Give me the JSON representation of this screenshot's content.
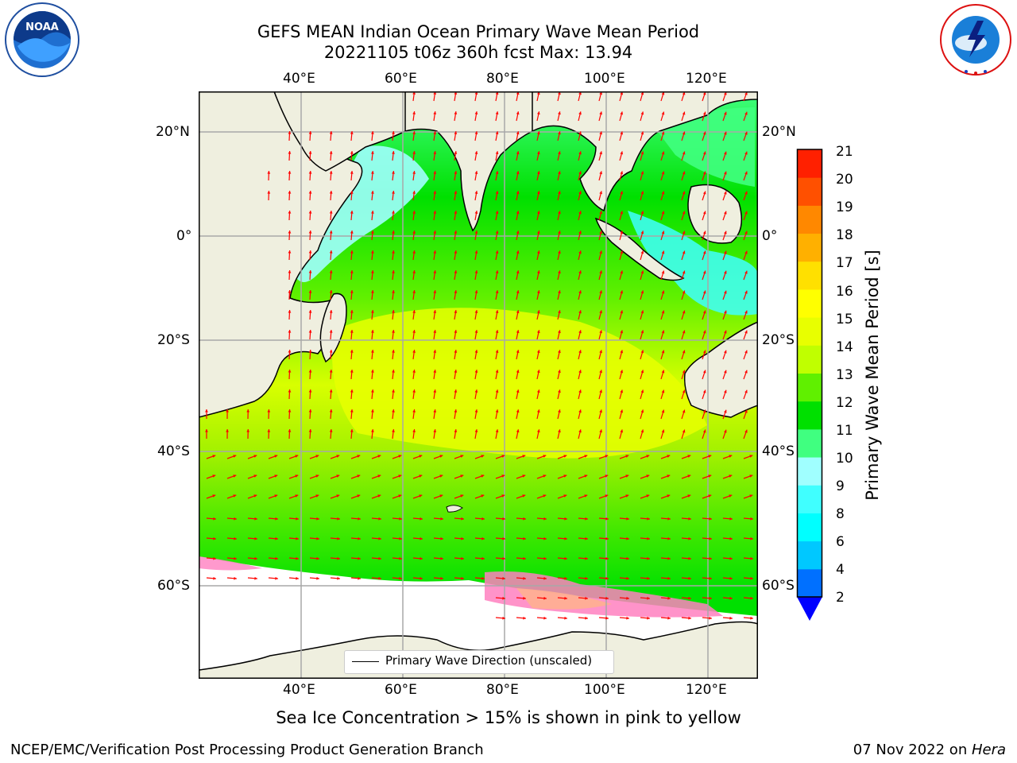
{
  "header": {
    "title_line1": "GEFS MEAN Indian Ocean Primary Wave Mean Period",
    "title_line2": "20221105 t06z 360h fcst   Max: 13.94"
  },
  "logos": {
    "noaa_text": "NOAA",
    "nws_text": "NATIONAL WEATHER SERVICE"
  },
  "map": {
    "lon_ticks": [
      "40°E",
      "60°E",
      "80°E",
      "100°E",
      "120°E"
    ],
    "lat_ticks": [
      "20°N",
      "0°",
      "20°S",
      "40°S",
      "60°S"
    ],
    "land_color": "#efefdf",
    "ice_region_color": "#ffffff",
    "arrow_color": "#ff0000",
    "legend_label": "Primary Wave Direction (unscaled)"
  },
  "colorbar": {
    "label": "Primary Wave Mean Period [s]",
    "ticks": [
      "2",
      "4",
      "6",
      "8",
      "9",
      "10",
      "11",
      "12",
      "13",
      "14",
      "15",
      "16",
      "17",
      "18",
      "19",
      "20",
      "21"
    ],
    "colors": [
      "#0070ff",
      "#00c8ff",
      "#00ffff",
      "#40ffff",
      "#a0ffff",
      "#40ff80",
      "#00e000",
      "#60f000",
      "#c0ff00",
      "#e8ff00",
      "#ffff00",
      "#ffe000",
      "#ffb000",
      "#ff8800",
      "#ff5000",
      "#ff2000"
    ],
    "extend_color": "#0000ff"
  },
  "caption": "Sea Ice Concentration > 15% is shown in pink to yellow",
  "footer": {
    "left": "NCEP/EMC/Verification Post Processing Product Generation Branch",
    "date": "07 Nov 2022 on ",
    "machine": "Hera"
  }
}
